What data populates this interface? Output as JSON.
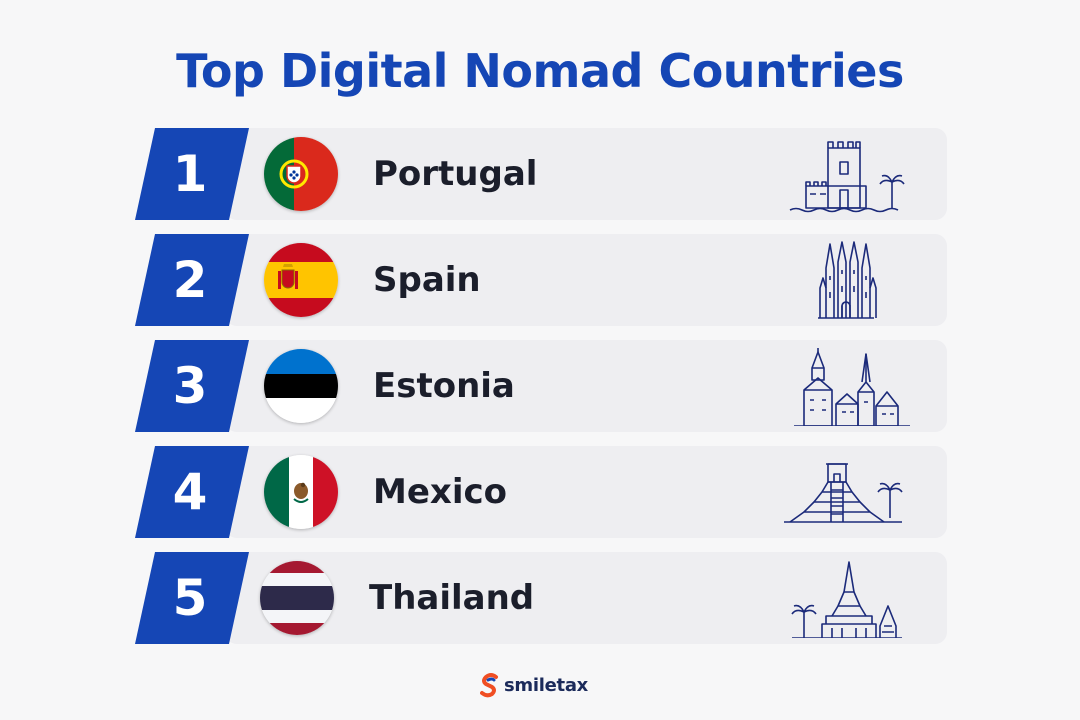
{
  "title": "Top Digital Nomad Countries",
  "colors": {
    "brand_blue": "#1546b5",
    "row_background": "#eeeef1",
    "text_dark": "#1b1e2b",
    "logo_orange": "#f04e23"
  },
  "countries": [
    {
      "rank": "1",
      "name": "Portugal",
      "flag_icon": "portugal-flag-icon",
      "landmark_icon": "belem-tower-icon"
    },
    {
      "rank": "2",
      "name": "Spain",
      "flag_icon": "spain-flag-icon",
      "landmark_icon": "sagrada-familia-icon"
    },
    {
      "rank": "3",
      "name": "Estonia",
      "flag_icon": "estonia-flag-icon",
      "landmark_icon": "tallinn-old-town-icon"
    },
    {
      "rank": "4",
      "name": "Mexico",
      "flag_icon": "mexico-flag-icon",
      "landmark_icon": "chichen-itza-pyramid-icon"
    },
    {
      "rank": "5",
      "name": "Thailand",
      "flag_icon": "thailand-flag-icon",
      "landmark_icon": "thai-temple-icon"
    }
  ],
  "brand": {
    "name": "smiletax",
    "icon": "smiletax-logo-icon"
  }
}
